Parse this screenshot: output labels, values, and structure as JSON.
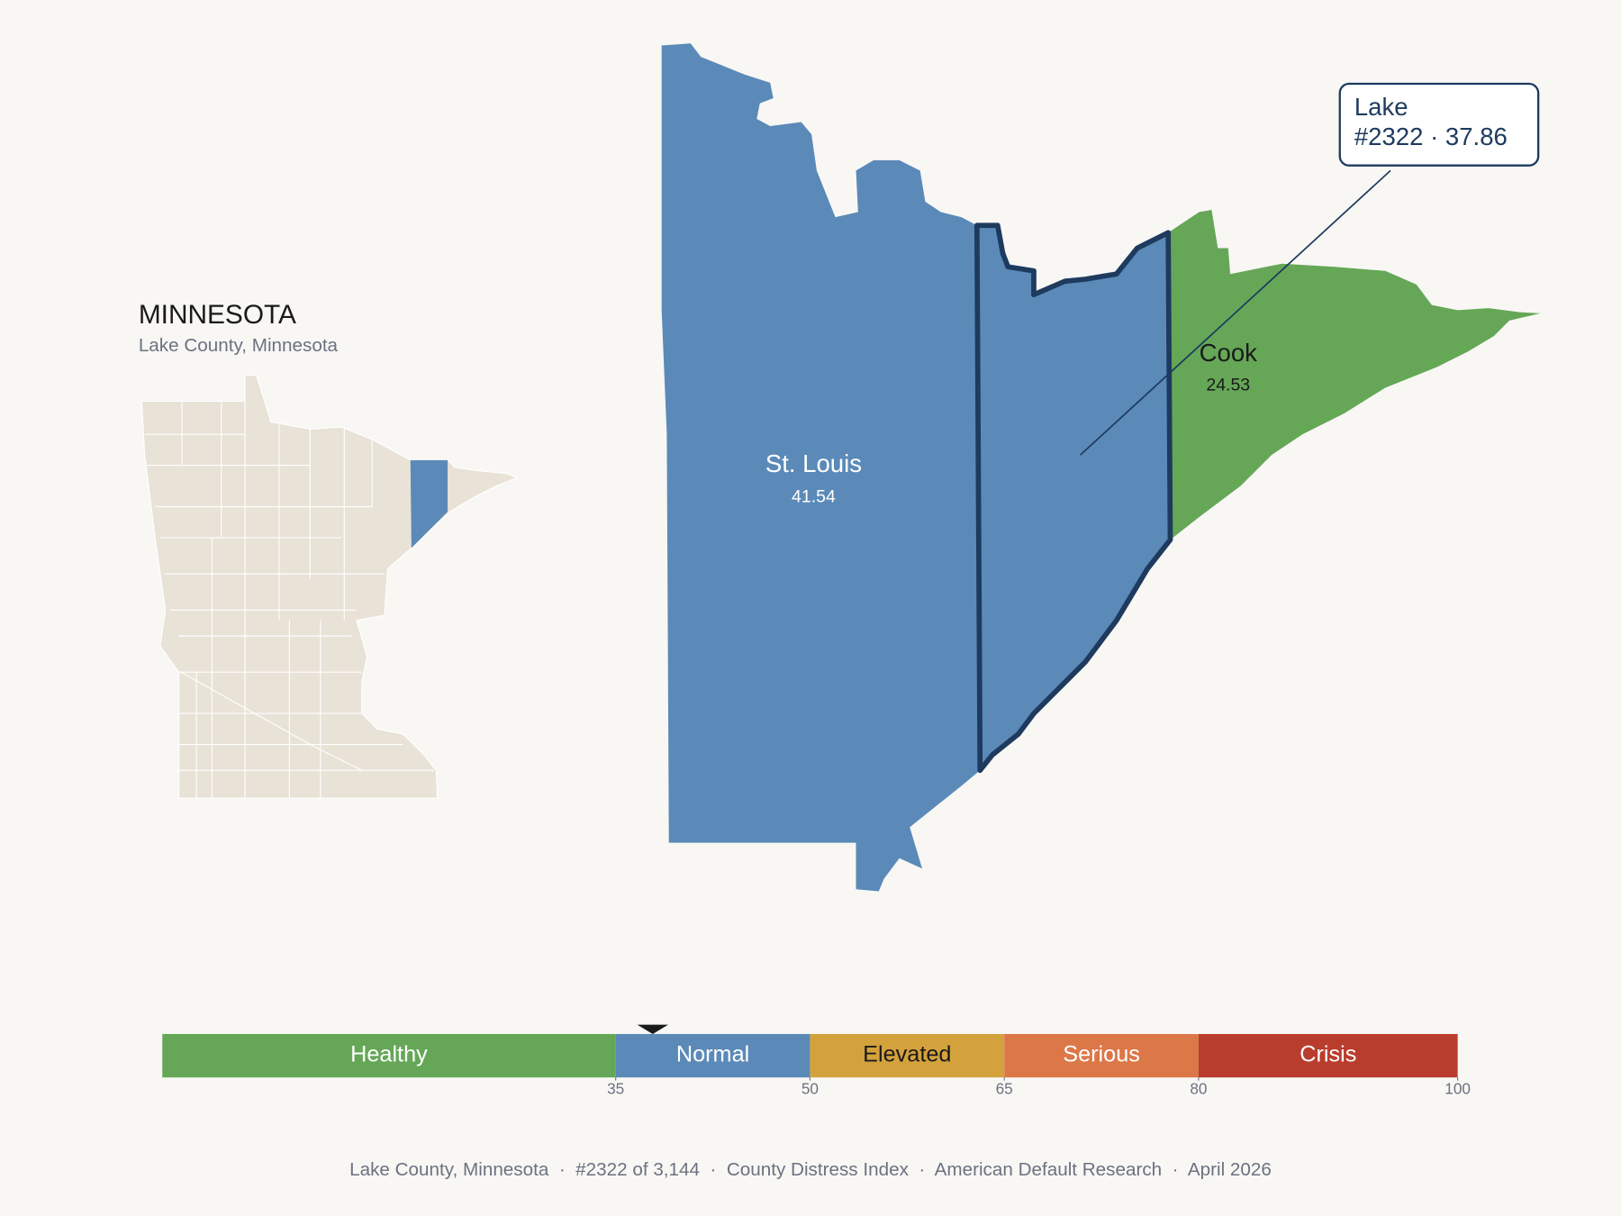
{
  "header": {
    "title": "MINNESOTA",
    "subtitle": "Lake County, Minnesota"
  },
  "map": {
    "counties": [
      {
        "name": "St. Louis",
        "score": 41.54,
        "color": "#5b8ab8",
        "label_color": "#ffffff"
      },
      {
        "name": "Cook",
        "score": 24.53,
        "color": "#65a757",
        "label_color": "#1a1a1a"
      }
    ],
    "selected": {
      "name": "Lake",
      "detail": "#2322 · 37.86",
      "score": 37.86,
      "color": "#5b8ab8",
      "outline": "#1e3a5f"
    }
  },
  "scale": {
    "range": [
      0,
      100
    ],
    "bands": [
      {
        "label": "Healthy",
        "from": 0,
        "to": 35,
        "color": "#65a757",
        "label_color": "#ffffff"
      },
      {
        "label": "Normal",
        "from": 35,
        "to": 50,
        "color": "#5b8ab8",
        "label_color": "#ffffff"
      },
      {
        "label": "Elevated",
        "from": 50,
        "to": 65,
        "color": "#d4a23c",
        "label_color": "#1a1a1a"
      },
      {
        "label": "Serious",
        "from": 65,
        "to": 80,
        "color": "#dc7748",
        "label_color": "#ffffff"
      },
      {
        "label": "Crisis",
        "from": 80,
        "to": 100,
        "color": "#b93d2d",
        "label_color": "#ffffff"
      }
    ],
    "ticks": [
      35,
      50,
      65,
      80,
      100
    ]
  },
  "footer": "Lake County, Minnesota  ·  #2322 of 3,144  ·  County Distress Index  ·  American Default Research  ·  April 2026"
}
